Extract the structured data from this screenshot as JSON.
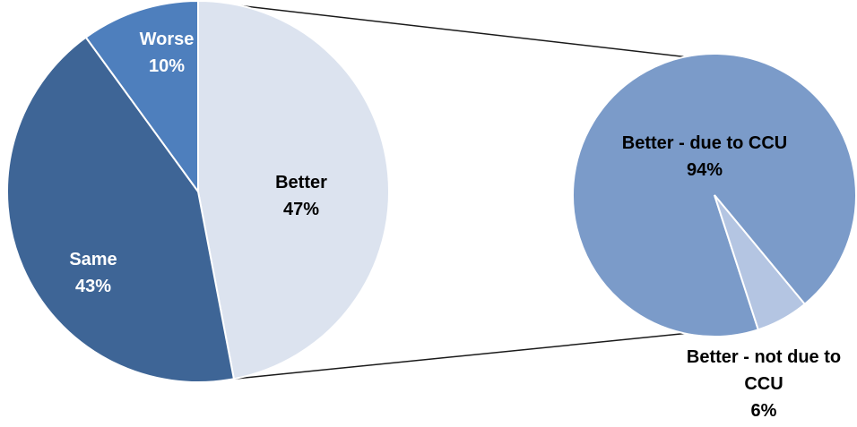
{
  "chart_data": {
    "type": "pie",
    "subtype": "pie-of-pie",
    "title": "",
    "main_pie": {
      "start_angle_deg": 0,
      "direction": "clockwise",
      "slices": [
        {
          "label": "Better",
          "value": 47,
          "value_text": "47%",
          "color": "#dce3ef",
          "text_color": "#000000"
        },
        {
          "label": "Same",
          "value": 43,
          "value_text": "43%",
          "color": "#3e6596",
          "text_color": "#ffffff"
        },
        {
          "label": "Worse",
          "value": 10,
          "value_text": "10%",
          "color": "#4e7fbd",
          "text_color": "#ffffff"
        }
      ]
    },
    "secondary_pie": {
      "breakdown_of": "Better",
      "start_angle_deg": 162,
      "direction": "clockwise",
      "slices": [
        {
          "label": "Better - due to CCU",
          "value": 94,
          "value_text": "94%",
          "color": "#7b9bc9",
          "text_color": "#000000"
        },
        {
          "label_lines": [
            "Better - not due to",
            "CCU"
          ],
          "value": 6,
          "value_text": "6%",
          "color": "#b4c5e2",
          "text_color": "#000000"
        }
      ]
    },
    "legend": "none",
    "data_labels": "category-and-percentage"
  }
}
